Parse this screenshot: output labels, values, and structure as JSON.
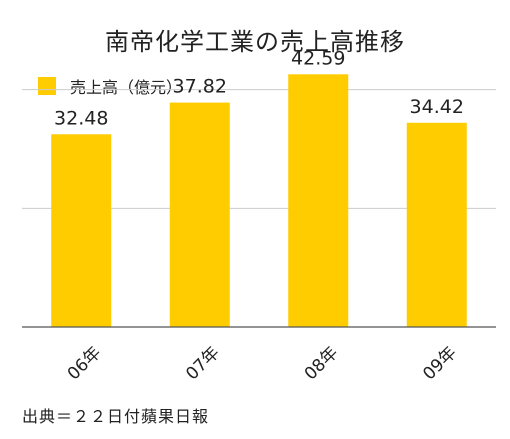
{
  "chart_data": {
    "type": "bar",
    "title": "南帝化学工業の売上高推移",
    "categories": [
      "06年",
      "07年",
      "08年",
      "09年"
    ],
    "series": [
      {
        "name": "売上高（億元）",
        "values": [
          32.48,
          37.82,
          42.59,
          34.42
        ]
      }
    ],
    "data_labels": [
      "32.48",
      "37.82",
      "42.59",
      "34.42"
    ],
    "ylim": [
      0,
      45
    ],
    "grid": true,
    "legend": "top-left",
    "colors": {
      "bar": "#ffcc00",
      "grid": "#cccccc",
      "axis": "#555555"
    }
  },
  "source_note": "出典＝２２日付蘋果日報"
}
